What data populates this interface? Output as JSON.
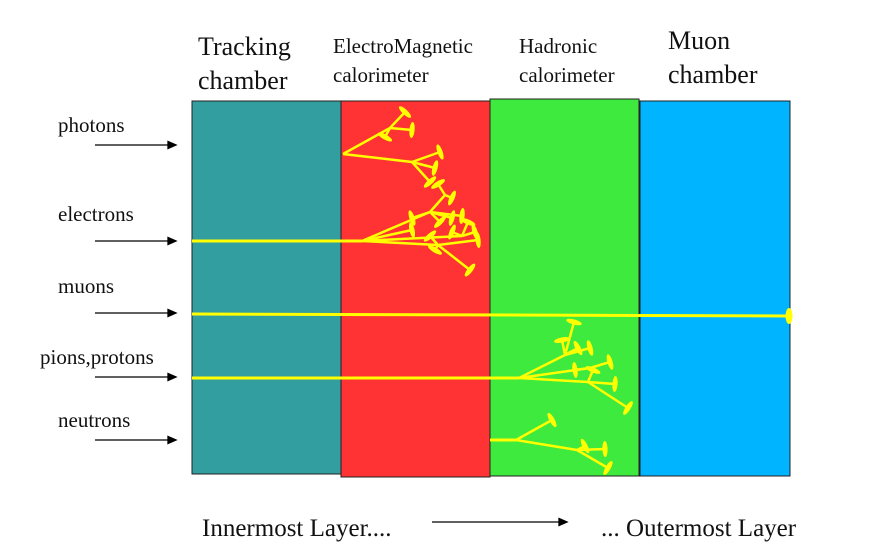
{
  "headers": {
    "tracking": {
      "line1": "Tracking",
      "line2": "chamber"
    },
    "em": {
      "line1": "ElectroMagnetic",
      "line2": "calorimeter"
    },
    "hadronic": {
      "line1": "Hadronic",
      "line2": "calorimeter"
    },
    "muon": {
      "line1": "Muon",
      "line2": "chamber"
    }
  },
  "particles": {
    "photons": "photons",
    "electrons": "electrons",
    "muons": "muons",
    "pions_protons": "pions,protons",
    "neutrons": "neutrons"
  },
  "footer": {
    "inner": "Innermost Layer....",
    "outer": "... Outermost Layer"
  },
  "colors": {
    "tracking": "#339e9f",
    "em": "#ff3333",
    "hadronic": "#3dea3d",
    "muon": "#00b4ff",
    "track": "#ffff00"
  }
}
